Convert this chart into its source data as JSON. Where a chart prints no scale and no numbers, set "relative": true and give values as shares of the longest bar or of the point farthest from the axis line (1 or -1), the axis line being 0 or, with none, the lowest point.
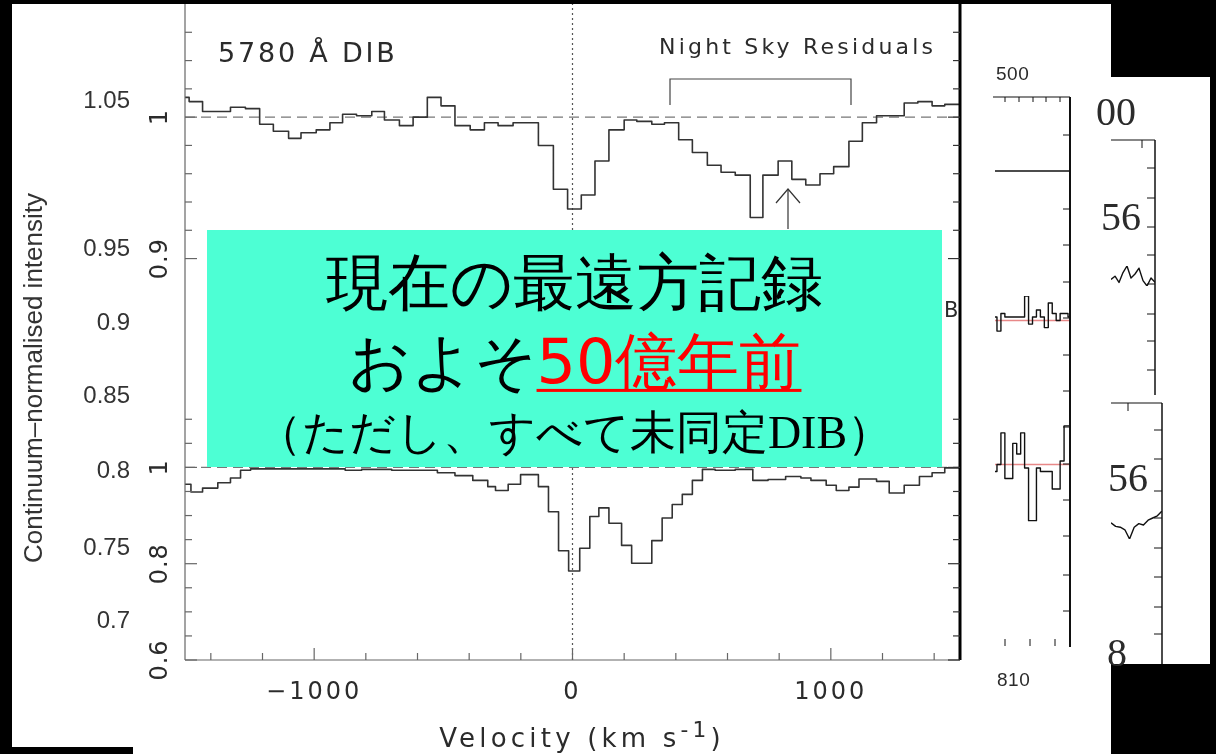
{
  "chart_data": [
    {
      "type": "other",
      "ylabel": "Continuum–normalised intensity",
      "annotations": [
        "1.05",
        "0.95",
        "0.9",
        "0.85",
        "0.8",
        "0.75",
        "0.7"
      ]
    },
    {
      "type": "step",
      "annotations": [
        "5780 Å DIB",
        "Night Sky Residuals"
      ],
      "x": [
        -1500,
        -1484,
        -1432,
        -1324,
        -1266,
        -1211,
        -1158,
        -1099,
        -1051,
        -992,
        -939,
        -890,
        -836,
        -777,
        -728,
        -670,
        -617,
        -562,
        -509,
        -455,
        -396,
        -341,
        -288,
        -230,
        -132,
        -74,
        -19,
        34,
        87,
        141,
        200,
        249,
        307,
        356,
        411,
        464,
        522,
        575,
        630,
        688,
        737,
        796,
        849,
        903,
        958,
        1011,
        1070,
        1122,
        1177,
        1284,
        1337,
        1392,
        1441,
        1500
      ],
      "values": [
        1.014,
        1.011,
        1.004,
        1.007,
        1.006,
        0.995,
        0.99,
        0.985,
        0.989,
        0.991,
        0.996,
        1.002,
        1.001,
        1.004,
        0.998,
        0.994,
        1.0,
        1.014,
        1.008,
        0.994,
        0.991,
        0.996,
        0.994,
        0.996,
        0.98,
        0.949,
        0.935,
        0.945,
        0.969,
        0.991,
        0.998,
        0.997,
        0.995,
        0.996,
        0.984,
        0.975,
        0.966,
        0.961,
        0.959,
        0.929,
        0.959,
        0.969,
        0.956,
        0.952,
        0.96,
        0.965,
        0.983,
        0.996,
        1.001,
        1.01,
        1.011,
        1.008,
        1.009,
        1.009
      ],
      "color": "#333333",
      "xlim": [
        -1500,
        1500
      ],
      "ylim": [
        0.8,
        1.08
      ],
      "yticks": [
        0.9,
        {
          "value": 0.92,
          "label": null
        },
        {
          "value": 0.94,
          "label": null
        },
        {
          "value": 0.96,
          "label": null
        },
        {
          "value": 0.98,
          "label": null
        },
        1,
        {
          "value": 1.02,
          "label": null
        },
        {
          "value": 1.04,
          "label": null
        },
        {
          "value": 1.06,
          "label": null
        }
      ],
      "tick_labels": "y",
      "ref_lines": [
        {
          "axis": "x",
          "value": 0,
          "line_style": "dotted",
          "color": "#555555"
        },
        {
          "axis": "y",
          "value": 1,
          "line_style": "dashed",
          "color": "#777777"
        }
      ]
    },
    {
      "type": "step",
      "xlabel": "Velocity (km s$^{-1}$)",
      "annotations": [
        "B"
      ],
      "x": [
        -1500,
        -1477,
        -1432,
        -1373,
        -1324,
        -1285,
        -1246,
        -880,
        -816,
        -700,
        -580,
        -523,
        -455,
        -386,
        -328,
        -298,
        -249,
        -201,
        -132,
        -93,
        -54,
        -15,
        28,
        67,
        102,
        141,
        190,
        229,
        307,
        347,
        386,
        425,
        464,
        503,
        552,
        630,
        698,
        757,
        825,
        884,
        923,
        982,
        1021,
        1070,
        1109,
        1177,
        1226,
        1284,
        1343,
        1392,
        1441,
        1500
      ],
      "values": [
        0.965,
        0.949,
        0.957,
        0.968,
        0.978,
        0.994,
        0.997,
        0.994,
        0.996,
        0.994,
        0.994,
        0.989,
        0.983,
        0.973,
        0.96,
        0.952,
        0.965,
        0.985,
        0.96,
        0.908,
        0.827,
        0.785,
        0.832,
        0.898,
        0.916,
        0.884,
        0.838,
        0.801,
        0.848,
        0.895,
        0.923,
        0.944,
        0.973,
        0.996,
        0.994,
        0.996,
        0.973,
        0.975,
        0.981,
        0.978,
        0.973,
        0.963,
        0.952,
        0.959,
        0.976,
        0.971,
        0.947,
        0.963,
        0.981,
        0.989,
        0.999,
        0.999
      ],
      "color": "#333333",
      "xlim": [
        -1500,
        1500
      ],
      "xticks": [
        {
          "value": -1400,
          "label": null
        },
        {
          "value": -1200,
          "label": null
        },
        -1000,
        {
          "value": -800,
          "label": null
        },
        {
          "value": -600,
          "label": null
        },
        {
          "value": -400,
          "label": null
        },
        {
          "value": -200,
          "label": null
        },
        0,
        {
          "value": 200,
          "label": null
        },
        {
          "value": 400,
          "label": null
        },
        {
          "value": 600,
          "label": null
        },
        {
          "value": 800,
          "label": null
        },
        1000,
        {
          "value": 1200,
          "label": null
        },
        {
          "value": 1400,
          "label": null
        }
      ],
      "ylim": [
        0.6,
        1.14
      ],
      "yticks": [
        0.6,
        {
          "value": 0.65,
          "label": null
        },
        {
          "value": 0.7,
          "label": null
        },
        {
          "value": 0.75,
          "label": null
        },
        0.8,
        {
          "value": 0.85,
          "label": null
        },
        {
          "value": 0.9,
          "label": null
        },
        {
          "value": 0.95,
          "label": null
        },
        1,
        {
          "value": 1.05,
          "label": null
        },
        {
          "value": 1.1,
          "label": null
        }
      ],
      "ref_lines": [
        {
          "axis": "x",
          "value": 0,
          "line_style": "dotted",
          "color": "#555555"
        },
        {
          "axis": "y",
          "value": 1,
          "line_style": "dashed",
          "color": "#777777"
        }
      ]
    },
    {
      "type": "other",
      "annotations": [
        "現在の最遠方記録",
        "およそ",
        "50億年前",
        "（ただし、すべて未同定DIB）"
      ]
    },
    {
      "type": "step",
      "relative": true,
      "categories": [
        null,
        null,
        null,
        null,
        null,
        null,
        null,
        null,
        null,
        null,
        null,
        null,
        null,
        null,
        null,
        null,
        null,
        null,
        null,
        null
      ],
      "series": [
        {
          "color": "#111111",
          "values": [
            0.94,
            0.9,
            0.95,
            0.94,
            0.94,
            0.94,
            0.94,
            0.94,
            1.0,
            0.92,
            0.94,
            0.96,
            0.94,
            0.91,
            0.98,
            0.95,
            0.93,
            0.95,
            0.95,
            0.94
          ]
        },
        {
          "color": "#111111",
          "values": [
            0.5,
            0.52,
            0.61,
            0.48,
            0.48,
            0.58,
            0.55,
            0.61,
            0.51,
            0.36,
            0.36,
            0.51,
            0.5,
            0.5,
            0.5,
            0.45,
            0.45,
            0.53,
            0.63,
            0.63
          ]
        }
      ],
      "ref_lines": [
        {
          "axis": "y",
          "value": 0.93,
          "color": "#e88888"
        },
        {
          "axis": "y",
          "value": 0.52,
          "color": "#e88888"
        }
      ],
      "annotations": [
        "500",
        "810"
      ]
    },
    {
      "type": "line",
      "relative": true,
      "categories": [
        null,
        null,
        null,
        null,
        null,
        null,
        null,
        null,
        null,
        null,
        null,
        null
      ],
      "values": [
        0.33,
        0.49,
        0.18,
        0.67,
        1,
        0.4,
        0.6,
        0.89,
        0.27,
        0,
        0.4,
        0.18
      ],
      "color": "#111111",
      "annotations": [
        "00",
        "56"
      ]
    },
    {
      "type": "line",
      "relative": true,
      "categories": [
        null,
        null,
        null,
        null,
        null,
        null,
        null,
        null,
        null,
        null,
        null,
        null
      ],
      "values": [
        0.58,
        0.45,
        0.42,
        0.33,
        0,
        0.42,
        0.55,
        0.5,
        0.67,
        0.75,
        0.83,
        1
      ],
      "color": "#111111",
      "annotations": [
        "56",
        "8"
      ]
    }
  ]
}
